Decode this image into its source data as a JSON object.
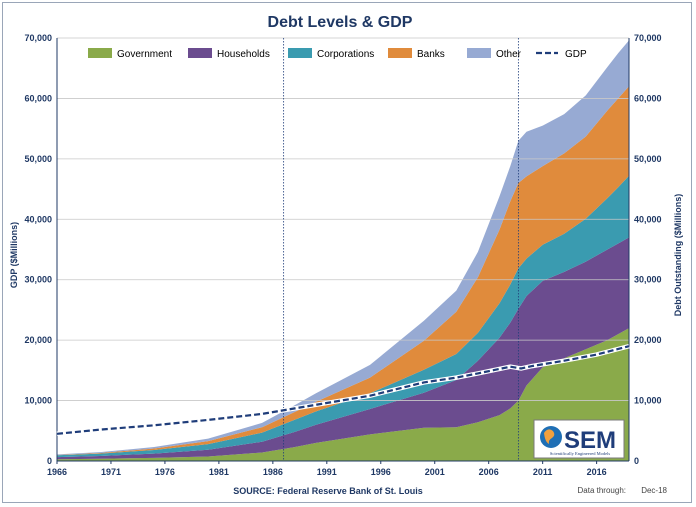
{
  "chart_data": {
    "type": "area",
    "title": "Debt Levels & GDP",
    "ylabel_left": "GDP ($Millions)",
    "ylabel_right": "Debt Outstanding ($Millions)",
    "ylim": [
      0,
      70000
    ],
    "yticks": [
      "0",
      "10,000",
      "20,000",
      "30,000",
      "40,000",
      "50,000",
      "60,000",
      "70,000"
    ],
    "xticks": [
      "1966",
      "1971",
      "1976",
      "1981",
      "1986",
      "1991",
      "1996",
      "2001",
      "2006",
      "2011",
      "2016"
    ],
    "xlim": [
      1966,
      2019
    ],
    "vlines": [
      1987.0,
      2008.75
    ],
    "source": "SOURCE: Federal Reserve Bank of St. Louis",
    "data_through_label": "Data through:",
    "data_through_value": "Dec-18",
    "logo": {
      "text": "SEM",
      "tagline": "Scientifically Engineered Models"
    },
    "colors": {
      "Government": "#8aaa4a",
      "Households": "#6b4c8f",
      "Corporations": "#3a9bb0",
      "Banks": "#e08b3c",
      "Other": "#97aad3",
      "GDP": "#1f3d7a"
    },
    "x": [
      1966,
      1970,
      1975,
      1980,
      1985,
      1988,
      1990,
      1995,
      2000,
      2003,
      2005,
      2007,
      2008,
      2008.75,
      2009.5,
      2011,
      2013,
      2015,
      2017,
      2018,
      2019
    ],
    "series": [
      {
        "name": "Government",
        "values": [
          300,
          380,
          520,
          750,
          1400,
          2300,
          3000,
          4400,
          5500,
          5600,
          6400,
          7600,
          8700,
          10000,
          12500,
          15500,
          17000,
          18500,
          20000,
          21000,
          22000
        ]
      },
      {
        "name": "Households",
        "values": [
          350,
          450,
          700,
          1100,
          1800,
          2500,
          3000,
          4200,
          5800,
          7800,
          10200,
          12800,
          14200,
          15200,
          14800,
          14300,
          14300,
          14500,
          15000,
          15000,
          15000
        ]
      },
      {
        "name": "Corporations",
        "values": [
          300,
          400,
          600,
          950,
          1500,
          2000,
          2200,
          2600,
          3800,
          4300,
          4600,
          5700,
          6300,
          6700,
          6200,
          6000,
          6300,
          7100,
          8500,
          9300,
          10200
        ]
      },
      {
        "name": "Banks",
        "values": [
          50,
          100,
          250,
          500,
          900,
          1300,
          1600,
          2600,
          4800,
          7000,
          9200,
          12200,
          13800,
          14100,
          13600,
          13000,
          13300,
          13600,
          14500,
          14700,
          14800
        ]
      },
      {
        "name": "Other",
        "values": [
          100,
          150,
          250,
          400,
          700,
          1100,
          1400,
          2100,
          3300,
          3500,
          4200,
          5500,
          5800,
          7000,
          7400,
          6700,
          6500,
          6800,
          7200,
          7500,
          7600
        ]
      }
    ],
    "gdp": {
      "name": "GDP",
      "x": [
        1966,
        1970,
        1975,
        1980,
        1985,
        1990,
        1995,
        2000,
        2003,
        2005,
        2008,
        2009,
        2010,
        2013,
        2016,
        2019
      ],
      "values": [
        4500,
        5200,
        5900,
        6800,
        7800,
        9300,
        10800,
        13000,
        13800,
        14500,
        15600,
        15300,
        15700,
        16600,
        17600,
        19000
      ]
    },
    "legend": [
      "Government",
      "Households",
      "Corporations",
      "Banks",
      "Other",
      "GDP"
    ]
  }
}
